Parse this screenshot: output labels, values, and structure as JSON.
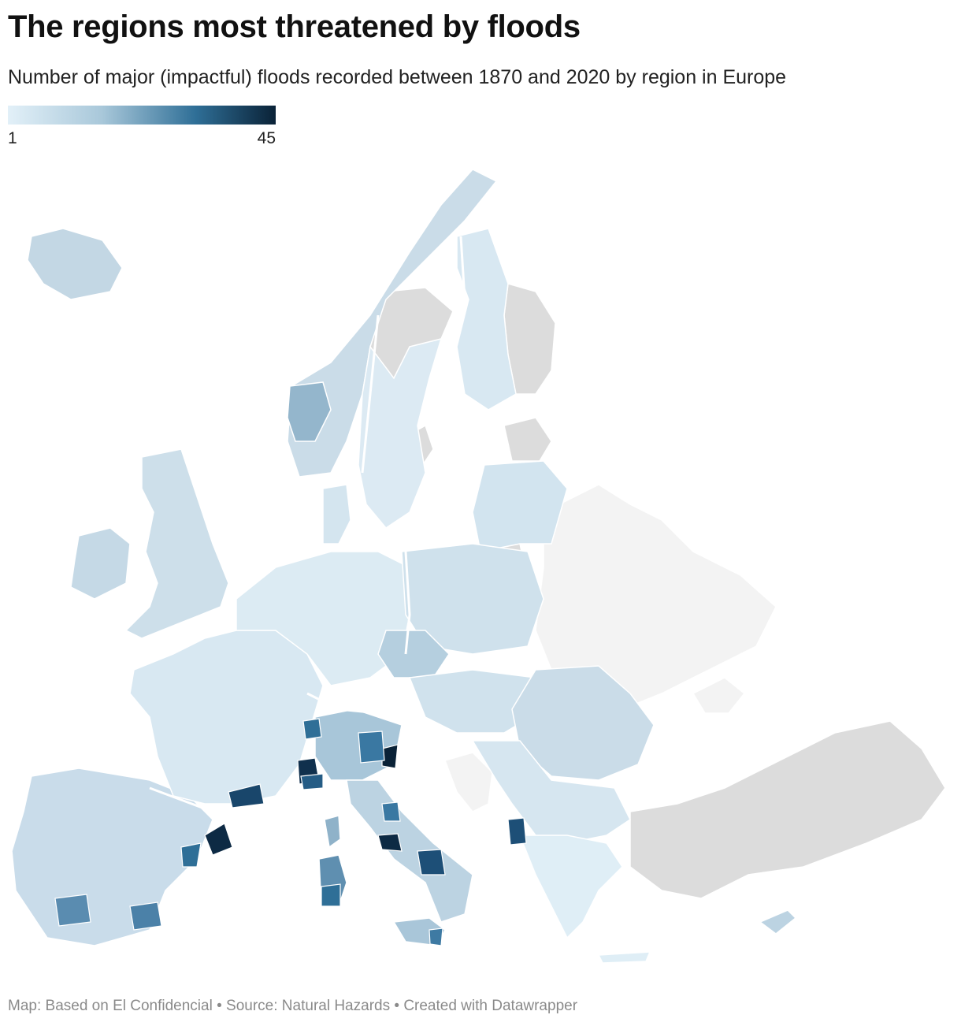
{
  "title": "The regions most threatened by floods",
  "subtitle": "Number of major (impactful) floods recorded between 1870 and 2020 by region in Europe",
  "legend": {
    "min_label": "1",
    "max_label": "45",
    "min": 1,
    "max": 45,
    "color_low": "#e2f0f8",
    "color_mid": "#2f6f97",
    "color_high": "#0a2237"
  },
  "colors": {
    "no_data": "#dcdcdc",
    "outside": "#f3f3f3",
    "border": "#ffffff"
  },
  "footer": {
    "map_credit": "Map: Based on El Confidencial",
    "source": "Source: Natural Hazards",
    "created": "Created with Datawrapper",
    "separator": "•"
  }
}
